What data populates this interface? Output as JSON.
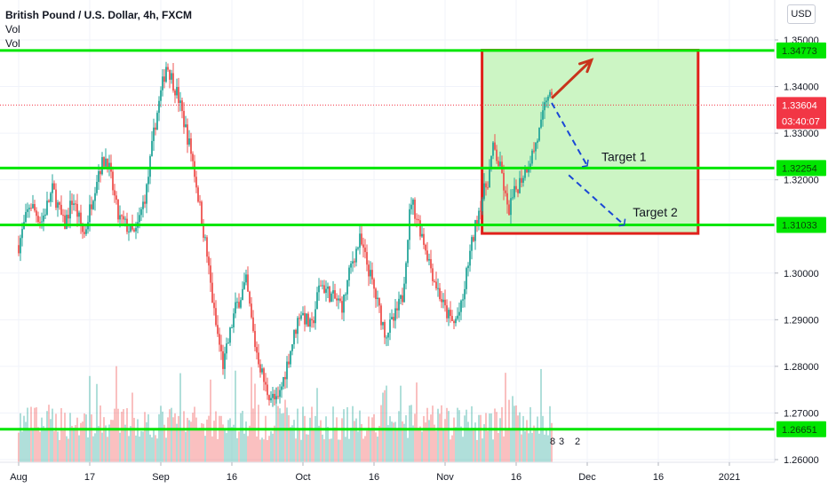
{
  "header": {
    "title": "British Pound / U.S. Dollar, 4h, FXCM",
    "indicator_1": "Vol",
    "indicator_2": "Vol",
    "currency_button": "USD"
  },
  "chart_data": {
    "type": "candlestick",
    "symbol": "GBPUSD",
    "timeframe": "4h",
    "ylim": [
      1.2585,
      1.3535
    ],
    "y_ticks": [
      {
        "value": 1.35,
        "label": "1.35000"
      },
      {
        "value": 1.34,
        "label": "1.34000"
      },
      {
        "value": 1.33,
        "label": "1.33000"
      },
      {
        "value": 1.32,
        "label": "1.32000"
      },
      {
        "value": 1.3,
        "label": "1.30000"
      },
      {
        "value": 1.29,
        "label": "1.29000"
      },
      {
        "value": 1.28,
        "label": "1.28000"
      },
      {
        "value": 1.27,
        "label": "1.27000"
      },
      {
        "value": 1.26,
        "label": "1.26000"
      }
    ],
    "x_ticks": [
      {
        "label": "Aug",
        "pos": 0.0
      },
      {
        "label": "17",
        "pos": 0.5
      },
      {
        "label": "Sep",
        "pos": 1.0
      },
      {
        "label": "16",
        "pos": 1.5
      },
      {
        "label": "Oct",
        "pos": 2.0
      },
      {
        "label": "16",
        "pos": 2.5
      },
      {
        "label": "Nov",
        "pos": 3.0
      },
      {
        "label": "16",
        "pos": 3.5
      },
      {
        "label": "Dec",
        "pos": 4.0
      },
      {
        "label": "16",
        "pos": 4.5
      },
      {
        "label": "2021",
        "pos": 5.0
      }
    ],
    "price_path": [
      [
        0.0,
        1.306
      ],
      [
        0.08,
        1.315
      ],
      [
        0.16,
        1.311
      ],
      [
        0.24,
        1.318
      ],
      [
        0.32,
        1.31
      ],
      [
        0.38,
        1.316
      ],
      [
        0.46,
        1.308
      ],
      [
        0.56,
        1.322
      ],
      [
        0.62,
        1.325
      ],
      [
        0.7,
        1.312
      ],
      [
        0.82,
        1.308
      ],
      [
        0.9,
        1.318
      ],
      [
        0.96,
        1.332
      ],
      [
        1.04,
        1.345
      ],
      [
        1.12,
        1.338
      ],
      [
        1.22,
        1.325
      ],
      [
        1.32,
        1.305
      ],
      [
        1.38,
        1.29
      ],
      [
        1.44,
        1.28
      ],
      [
        1.52,
        1.292
      ],
      [
        1.6,
        1.298
      ],
      [
        1.66,
        1.285
      ],
      [
        1.74,
        1.275
      ],
      [
        1.82,
        1.272
      ],
      [
        1.9,
        1.282
      ],
      [
        1.98,
        1.292
      ],
      [
        2.06,
        1.288
      ],
      [
        2.12,
        1.298
      ],
      [
        2.2,
        1.295
      ],
      [
        2.28,
        1.293
      ],
      [
        2.34,
        1.302
      ],
      [
        2.4,
        1.307
      ],
      [
        2.46,
        1.301
      ],
      [
        2.52,
        1.294
      ],
      [
        2.58,
        1.287
      ],
      [
        2.64,
        1.29
      ],
      [
        2.7,
        1.295
      ],
      [
        2.76,
        1.316
      ],
      [
        2.84,
        1.308
      ],
      [
        2.92,
        1.299
      ],
      [
        3.0,
        1.292
      ],
      [
        3.06,
        1.289
      ],
      [
        3.12,
        1.293
      ],
      [
        3.16,
        1.302
      ],
      [
        3.24,
        1.314
      ],
      [
        3.3,
        1.32
      ],
      [
        3.34,
        1.327
      ],
      [
        3.4,
        1.321
      ],
      [
        3.44,
        1.313
      ],
      [
        3.5,
        1.318
      ],
      [
        3.56,
        1.322
      ],
      [
        3.62,
        1.326
      ],
      [
        3.68,
        1.332
      ],
      [
        3.72,
        1.339
      ],
      [
        3.75,
        1.3365
      ]
    ],
    "horizontal_levels": [
      {
        "value": 1.34773,
        "label": "1.34773"
      },
      {
        "value": 1.32254,
        "label": "1.32254"
      },
      {
        "value": 1.31033,
        "label": "1.31033"
      },
      {
        "value": 1.26651,
        "label": "1.26651"
      }
    ],
    "last_price": {
      "value": 1.33604,
      "label": "1.33604",
      "countdown": "03:40:07"
    },
    "highlight_box": {
      "x_start": 3.26,
      "x_end": 4.78,
      "y_top": 1.3478,
      "y_bottom": 1.3085
    },
    "arrow_up": {
      "from": [
        3.75,
        1.3375
      ],
      "to": [
        4.03,
        1.3457
      ]
    },
    "target_paths": [
      {
        "label": "Target 1",
        "points": [
          [
            3.75,
            1.3365
          ],
          [
            4.0,
            1.323
          ]
        ],
        "label_at": [
          4.1,
          1.324
        ]
      },
      {
        "label": "Target 2",
        "points": [
          [
            3.87,
            1.321
          ],
          [
            4.26,
            1.3103
          ]
        ],
        "label_at": [
          4.32,
          1.3121
        ]
      }
    ],
    "volume_last_labels": [
      "8",
      "3",
      "2"
    ],
    "colors": {
      "up": "#26a69a",
      "down": "#ef5350",
      "level_line": "#00e600",
      "level_tag": "#00e600",
      "box_fill": "#ccf5c4",
      "box_border": "#e0201b",
      "last_price": "#f23645",
      "arrow": "#c8341c",
      "target_line": "#1a47d6"
    }
  }
}
